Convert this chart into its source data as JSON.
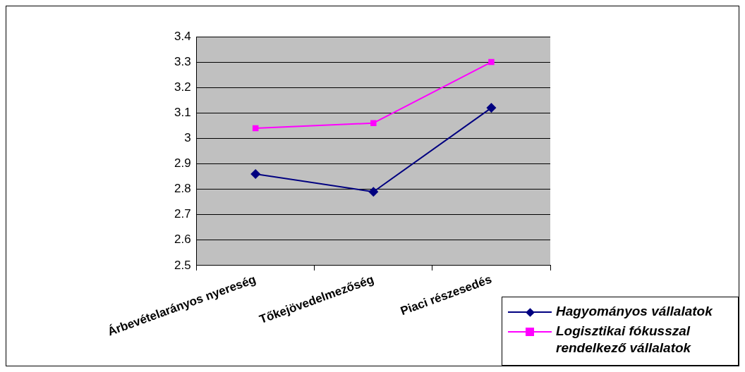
{
  "chart_data": {
    "type": "line",
    "categories": [
      "Árbevételarányos nyereség",
      "Tőkejövedelmezőség",
      "Piaci részesedés"
    ],
    "series": [
      {
        "name": "Hagyományos vállalatok",
        "color": "#000080",
        "marker": "diamond",
        "values": [
          2.86,
          2.79,
          3.12
        ]
      },
      {
        "name": "Logisztikai fókusszal rendelkező vállalatok",
        "color": "#ff00ff",
        "marker": "square",
        "values": [
          3.04,
          3.06,
          3.3
        ]
      }
    ],
    "ylim": [
      2.5,
      3.4
    ],
    "yticks": [
      2.5,
      2.6,
      2.7,
      2.8,
      2.9,
      3,
      3.1,
      3.2,
      3.3,
      3.4
    ],
    "grid": "y",
    "legend": "bottom right",
    "line_style": "solid"
  }
}
